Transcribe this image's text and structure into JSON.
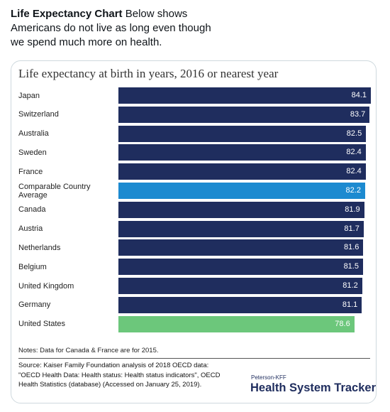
{
  "post": {
    "title": "Life Expectancy Chart",
    "text": "Below shows Americans do not live as long even though we spend much more on health."
  },
  "chart_data": {
    "type": "bar",
    "orientation": "horizontal",
    "title": "Life expectancy at birth in years, 2016 or nearest year",
    "categories": [
      "Japan",
      "Switzerland",
      "Australia",
      "Sweden",
      "France",
      "Comparable Country Average",
      "Canada",
      "Austria",
      "Netherlands",
      "Belgium",
      "United Kingdom",
      "Germany",
      "United States"
    ],
    "values": [
      84.1,
      83.7,
      82.5,
      82.4,
      82.4,
      82.2,
      81.9,
      81.7,
      81.6,
      81.5,
      81.2,
      81.1,
      78.6
    ],
    "colors": [
      "#1f2d5e",
      "#1f2d5e",
      "#1f2d5e",
      "#1f2d5e",
      "#1f2d5e",
      "#1c8ad0",
      "#1f2d5e",
      "#1f2d5e",
      "#1f2d5e",
      "#1f2d5e",
      "#1f2d5e",
      "#1f2d5e",
      "#6cc77b"
    ],
    "notes": "Notes: Data for Canada & France are for 2015.",
    "source": "Source: Kaiser Family Foundation analysis of 2018 OECD data: \"OECD Health Data: Health status: Health status indicators\", OECD Health Statistics (database) (Accessed on January 25, 2019).",
    "brand_small": "Peterson-KFF",
    "brand": "Health System Tracker"
  }
}
